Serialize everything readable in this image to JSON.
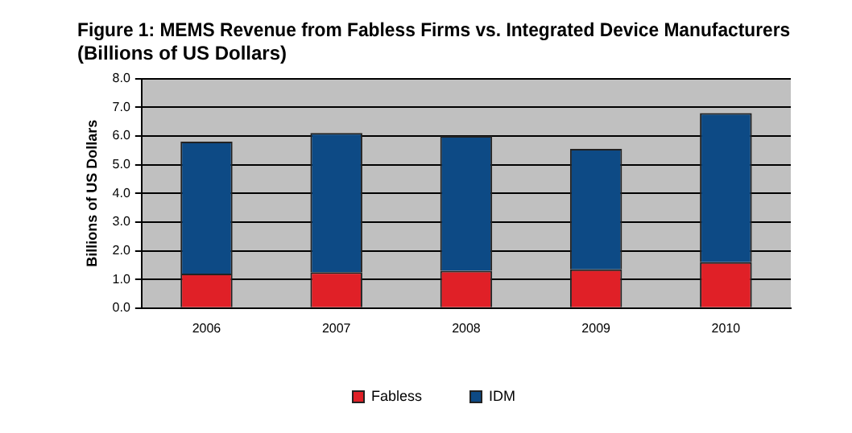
{
  "chart_data": {
    "type": "bar",
    "title": [
      "Figure 1: MEMS Revenue from Fabless Firms vs. Integrated Device Manufacturers",
      "(Billions of US Dollars)"
    ],
    "ylabel": "Billions of US Dollars",
    "categories": [
      "2006",
      "2007",
      "2008",
      "2009",
      "2010"
    ],
    "stacked": true,
    "series": [
      {
        "name": "Fabless",
        "color": "#e02027",
        "values": [
          1.2,
          1.25,
          1.3,
          1.35,
          1.6
        ]
      },
      {
        "name": "IDM",
        "color": "#0d4a85",
        "values": [
          4.6,
          4.85,
          4.7,
          4.2,
          5.2
        ]
      }
    ],
    "ylim": [
      0,
      8
    ],
    "yticks": [
      {
        "value": 0,
        "label": "0.0"
      },
      {
        "value": 1,
        "label": "1.0"
      },
      {
        "value": 2,
        "label": "2.0"
      },
      {
        "value": 3,
        "label": "3.0"
      },
      {
        "value": 4,
        "label": "4.0"
      },
      {
        "value": 5,
        "label": "5.0"
      },
      {
        "value": 6,
        "label": "6.0"
      },
      {
        "value": 7,
        "label": "7.0"
      },
      {
        "value": 8,
        "label": "8.0"
      }
    ],
    "grid": "y",
    "legend": "bottom"
  }
}
